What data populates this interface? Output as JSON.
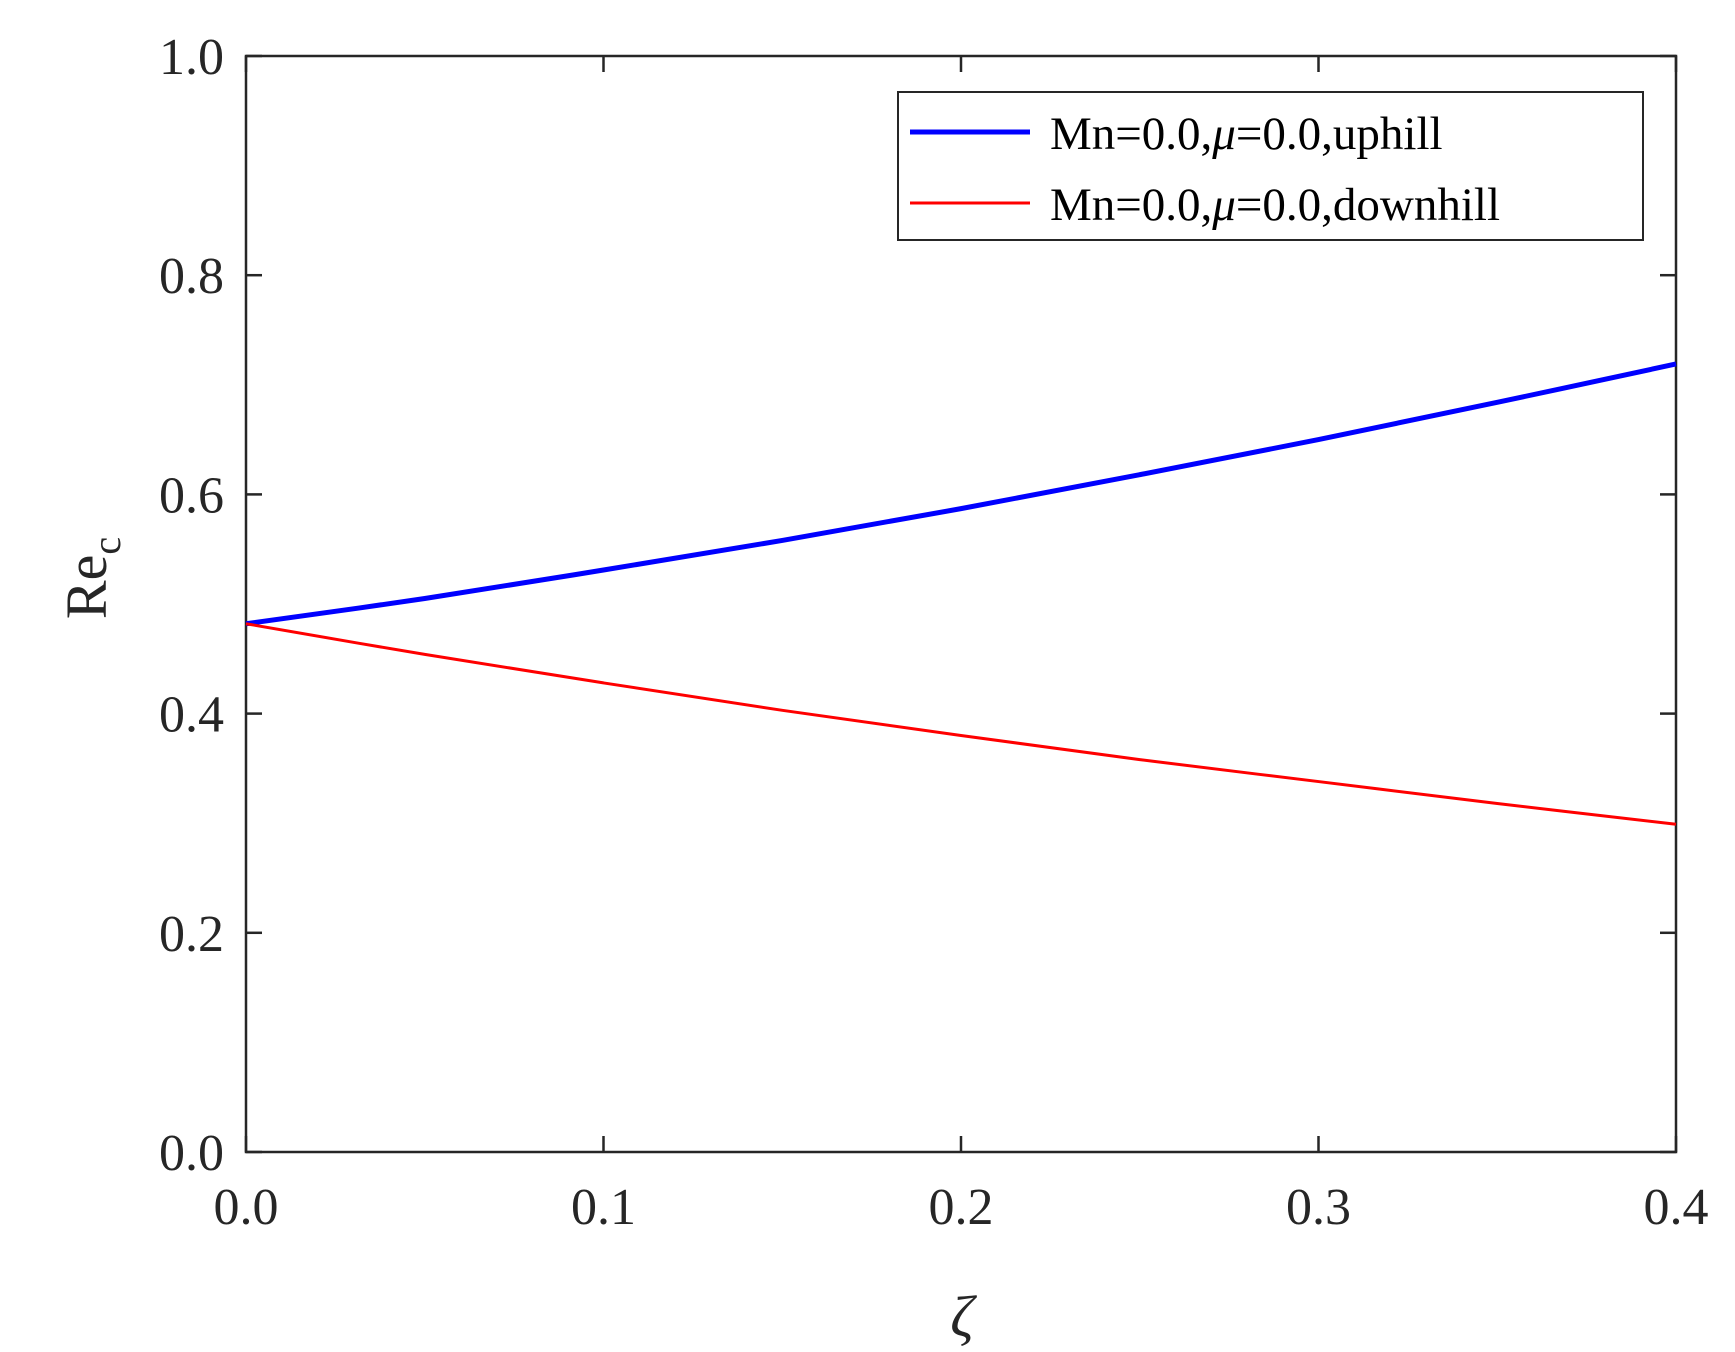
{
  "chart_data": {
    "type": "line",
    "title": "",
    "xlabel": "ζ",
    "ylabel": {
      "main": "Re",
      "sub": "c"
    },
    "xlim": [
      0,
      0.4
    ],
    "ylim": [
      0,
      1.0
    ],
    "x_ticks": [
      0,
      0.1,
      0.2,
      0.3,
      0.4
    ],
    "x_tick_labels": [
      "0.0",
      "0.1",
      "0.2",
      "0.3",
      "0.4"
    ],
    "y_ticks": [
      0,
      0.2,
      0.4,
      0.6,
      0.8,
      1.0
    ],
    "y_tick_labels": [
      "0.0",
      "0.2",
      "0.4",
      "0.6",
      "0.8",
      "1.0"
    ],
    "grid": false,
    "legend_position": "top-right",
    "series": [
      {
        "name": "Mn=0.0,μ=0.0,uphill",
        "legend_parts": [
          "Mn=0.0,",
          "μ",
          "=0.0,uphill"
        ],
        "color": "#0000ff",
        "line_width": "thick",
        "x": [
          0,
          0.05,
          0.1,
          0.15,
          0.2,
          0.25,
          0.3,
          0.35,
          0.4
        ],
        "y": [
          0.482,
          0.505,
          0.531,
          0.558,
          0.587,
          0.618,
          0.65,
          0.684,
          0.719
        ]
      },
      {
        "name": "Mn=0.0,μ=0.0,downhill",
        "legend_parts": [
          "Mn=0.0,",
          "μ",
          "=0.0,downhill"
        ],
        "color": "#ff0000",
        "line_width": "thin",
        "x": [
          0,
          0.05,
          0.1,
          0.15,
          0.2,
          0.25,
          0.3,
          0.35,
          0.4
        ],
        "y": [
          0.482,
          0.454,
          0.428,
          0.403,
          0.38,
          0.358,
          0.338,
          0.318,
          0.299
        ]
      }
    ]
  }
}
